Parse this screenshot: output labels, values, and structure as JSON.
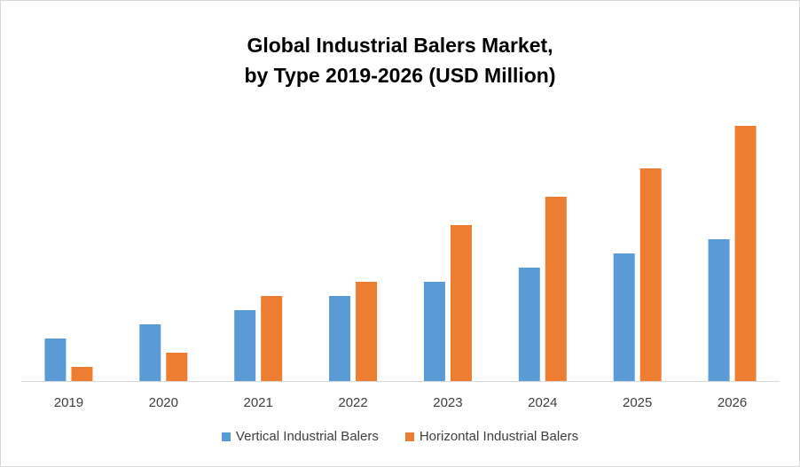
{
  "chart_data": {
    "type": "bar",
    "title_line1": "Global Industrial Balers Market,",
    "title_line2": "by Type 2019-2026 (USD Million)",
    "categories": [
      "2019",
      "2020",
      "2021",
      "2022",
      "2023",
      "2024",
      "2025",
      "2026"
    ],
    "series": [
      {
        "name": "Vertical Industrial Balers",
        "color": "#5b9bd5",
        "values": [
          3,
          4,
          5,
          6,
          7,
          8,
          9,
          10
        ]
      },
      {
        "name": "Horizontal Industrial Balers",
        "color": "#ed7d31",
        "values": [
          1,
          2,
          6,
          7,
          11,
          13,
          15,
          18
        ]
      }
    ],
    "ylim": [
      0,
      20
    ],
    "grid": false,
    "legend_position": "bottom"
  }
}
